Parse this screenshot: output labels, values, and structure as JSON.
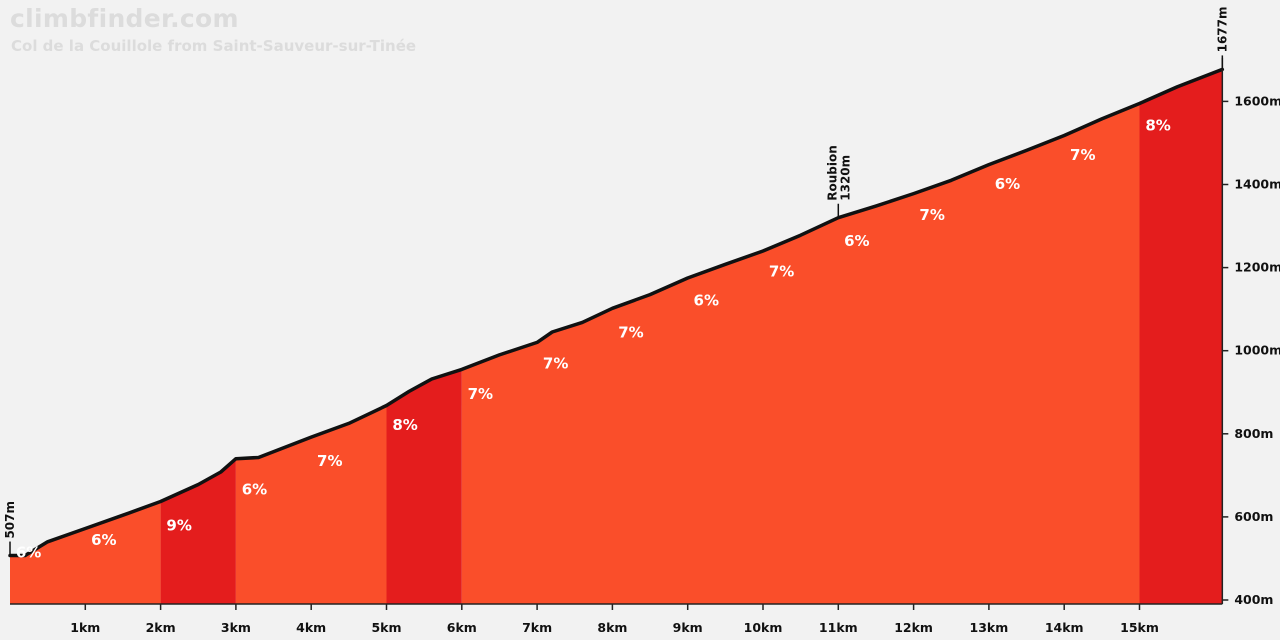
{
  "header": {
    "brand": "climbfinder.com",
    "subtitle": "Col de la Couillole from Saint-Sauveur-sur-Tinée"
  },
  "chart_data": {
    "type": "area",
    "title": "Col de la Couillole from Saint-Sauveur-sur-Tinée",
    "xlabel": "",
    "ylabel": "",
    "xlim": [
      0,
      16.1
    ],
    "ylim": [
      400,
      1677
    ],
    "x_ticks": [
      "1km",
      "2km",
      "3km",
      "4km",
      "5km",
      "6km",
      "7km",
      "8km",
      "9km",
      "10km",
      "11km",
      "12km",
      "13km",
      "14km",
      "15km"
    ],
    "y_ticks": [
      "400m",
      "600m",
      "800m",
      "1000m",
      "1200m",
      "1400m",
      "1600m"
    ],
    "segments": [
      {
        "from_km": 0,
        "to_km": 2,
        "gradient": "6%",
        "color": "#fa4e2a"
      },
      {
        "from_km": 2,
        "to_km": 3,
        "gradient": "9%",
        "color": "#e41d1d"
      },
      {
        "from_km": 3,
        "to_km": 5,
        "gradient": "7%",
        "color": "#fa4e2a"
      },
      {
        "from_km": 5,
        "to_km": 6,
        "gradient": "8%",
        "color": "#e41d1d"
      },
      {
        "from_km": 6,
        "to_km": 15,
        "gradient": "7%",
        "color": "#fa4e2a"
      },
      {
        "from_km": 15,
        "to_km": 16.1,
        "gradient": "8%",
        "color": "#e41d1d"
      }
    ],
    "gradient_labels": [
      {
        "km": 0.25,
        "elev": 555,
        "text": "6%"
      },
      {
        "km": 1.25,
        "elev": 585,
        "text": "6%"
      },
      {
        "km": 2.25,
        "elev": 620,
        "text": "9%"
      },
      {
        "km": 2.25,
        "elev": 620,
        "text": "9%"
      },
      {
        "km": 3.25,
        "elev": 707,
        "text": "6%"
      },
      {
        "km": 4.25,
        "elev": 775,
        "text": "7%"
      },
      {
        "km": 5.25,
        "elev": 862,
        "text": "8%"
      },
      {
        "km": 6.25,
        "elev": 937,
        "text": "7%"
      },
      {
        "km": 7.25,
        "elev": 1010,
        "text": "7%"
      },
      {
        "km": 8.25,
        "elev": 1085,
        "text": "7%"
      },
      {
        "km": 9.25,
        "elev": 1162,
        "text": "6%"
      },
      {
        "km": 10.25,
        "elev": 1232,
        "text": "7%"
      },
      {
        "km": 11.25,
        "elev": 1305,
        "text": "6%"
      },
      {
        "km": 12.25,
        "elev": 1367,
        "text": "7%"
      },
      {
        "km": 13.25,
        "elev": 1442,
        "text": "6%"
      },
      {
        "km": 14.25,
        "elev": 1512,
        "text": "7%"
      },
      {
        "km": 15.25,
        "elev": 1583,
        "text": "8%"
      }
    ],
    "profile": [
      [
        0,
        507
      ],
      [
        0.2,
        507
      ],
      [
        0.5,
        540
      ],
      [
        1,
        572
      ],
      [
        1.5,
        604
      ],
      [
        2,
        637
      ],
      [
        2.5,
        678
      ],
      [
        2.8,
        708
      ],
      [
        3,
        740
      ],
      [
        3.3,
        743
      ],
      [
        4,
        792
      ],
      [
        4.5,
        825
      ],
      [
        5,
        868
      ],
      [
        5.3,
        902
      ],
      [
        5.6,
        932
      ],
      [
        6,
        955
      ],
      [
        6.5,
        990
      ],
      [
        7,
        1020
      ],
      [
        7.2,
        1045
      ],
      [
        7.6,
        1068
      ],
      [
        8,
        1102
      ],
      [
        8.5,
        1135
      ],
      [
        9,
        1175
      ],
      [
        9.5,
        1208
      ],
      [
        10,
        1240
      ],
      [
        10.5,
        1278
      ],
      [
        11,
        1320
      ],
      [
        11.5,
        1348
      ],
      [
        12,
        1378
      ],
      [
        12.5,
        1410
      ],
      [
        13,
        1448
      ],
      [
        13.5,
        1482
      ],
      [
        14,
        1518
      ],
      [
        14.5,
        1558
      ],
      [
        15,
        1595
      ],
      [
        15.5,
        1635
      ],
      [
        16.1,
        1677
      ]
    ],
    "markers": [
      {
        "km": 0,
        "elev": 507,
        "label": "507m"
      },
      {
        "km": 11,
        "elev": 1320,
        "label": "1320m",
        "name": "Roubion"
      },
      {
        "km": 16.1,
        "elev": 1677,
        "label": "1677m"
      }
    ],
    "grid": false,
    "legend": "none"
  }
}
